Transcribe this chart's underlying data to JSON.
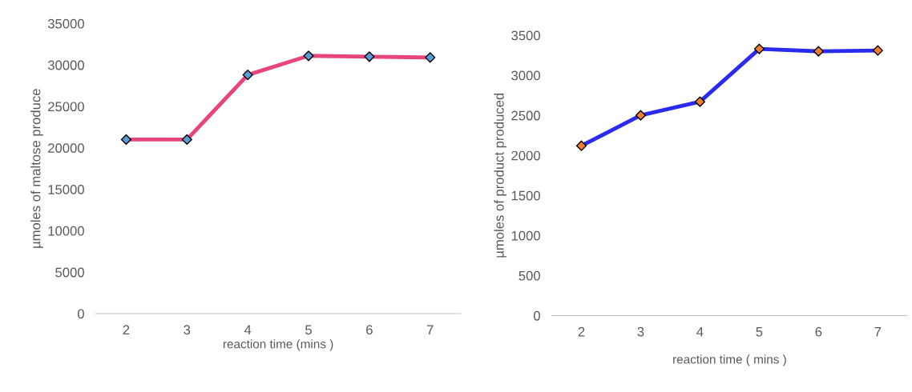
{
  "chart_data": [
    {
      "type": "line",
      "categories": [
        "2",
        "3",
        "4",
        "5",
        "6",
        "7"
      ],
      "xlabel": "reaction time (mins )",
      "ylabel": "µmoles of maltose produce",
      "ylim": [
        0,
        35000
      ],
      "yticks": [
        0,
        5000,
        10000,
        15000,
        20000,
        25000,
        30000,
        35000
      ],
      "marker": "diamond",
      "grid": false,
      "series": [
        {
          "color": "#e8457a",
          "colors": [
            "#5b9bd5",
            "#5b9bd5",
            "#5b9bd5",
            "#5b9bd5",
            "#5b9bd5",
            "#5b9bd5"
          ],
          "values": [
            21000,
            21000,
            28800,
            31100,
            31000,
            30900
          ]
        }
      ]
    },
    {
      "type": "line",
      "categories": [
        "2",
        "3",
        "4",
        "5",
        "6",
        "7"
      ],
      "xlabel": "reaction time ( mins )",
      "ylabel": "µmoles of product produced",
      "ylim": [
        0,
        3500
      ],
      "yticks": [
        0,
        500,
        1000,
        1500,
        2000,
        2500,
        3000,
        3500
      ],
      "marker": "diamond",
      "grid": false,
      "series": [
        {
          "color": "#2b2bf0",
          "colors": [
            "#ed7d31",
            "#ed7d31",
            "#ed7d31",
            "#ed7d31",
            "#ed7d31",
            "#ed7d31"
          ],
          "values": [
            2120,
            2500,
            2670,
            3330,
            3300,
            3310
          ]
        }
      ]
    }
  ]
}
